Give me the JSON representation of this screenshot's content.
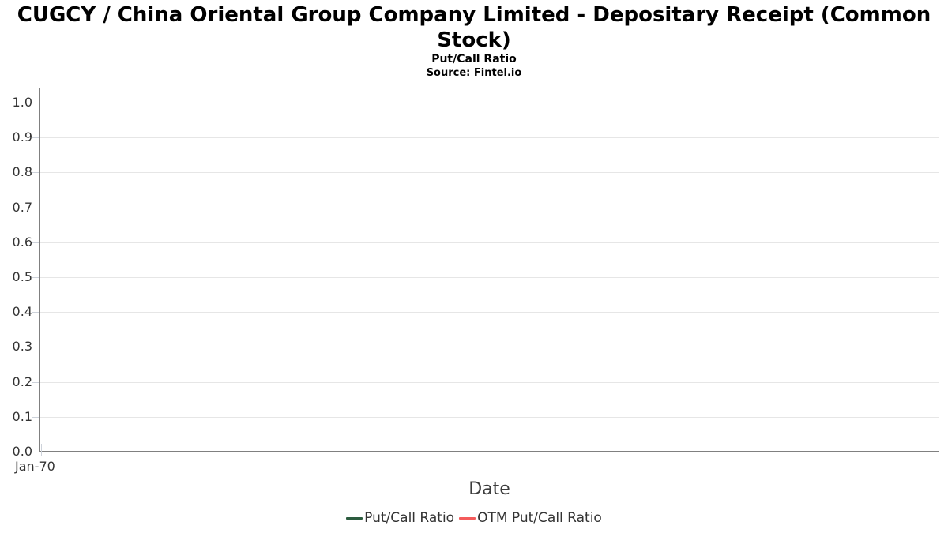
{
  "chart_data": {
    "type": "line",
    "title": "CUGCY / China Oriental Group Company Limited - Depositary Receipt (Common Stock)",
    "subtitle": "Put/Call Ratio",
    "source": "Source: Fintel.io",
    "xlabel": "Date",
    "ylabel": "",
    "ylim": [
      0.0,
      1.04
    ],
    "y_tick_labels": [
      "0.0",
      "0.1",
      "0.2",
      "0.3",
      "0.4",
      "0.5",
      "0.6",
      "0.7",
      "0.8",
      "0.9",
      "1.0"
    ],
    "x_tick_labels": [
      "Jan-70"
    ],
    "grid": true,
    "legend_position": "bottom",
    "series": [
      {
        "name": "Put/Call Ratio",
        "color": "#2c5c3f",
        "values": []
      },
      {
        "name": "OTM Put/Call Ratio",
        "color": "#f45b5b",
        "values": []
      }
    ]
  }
}
